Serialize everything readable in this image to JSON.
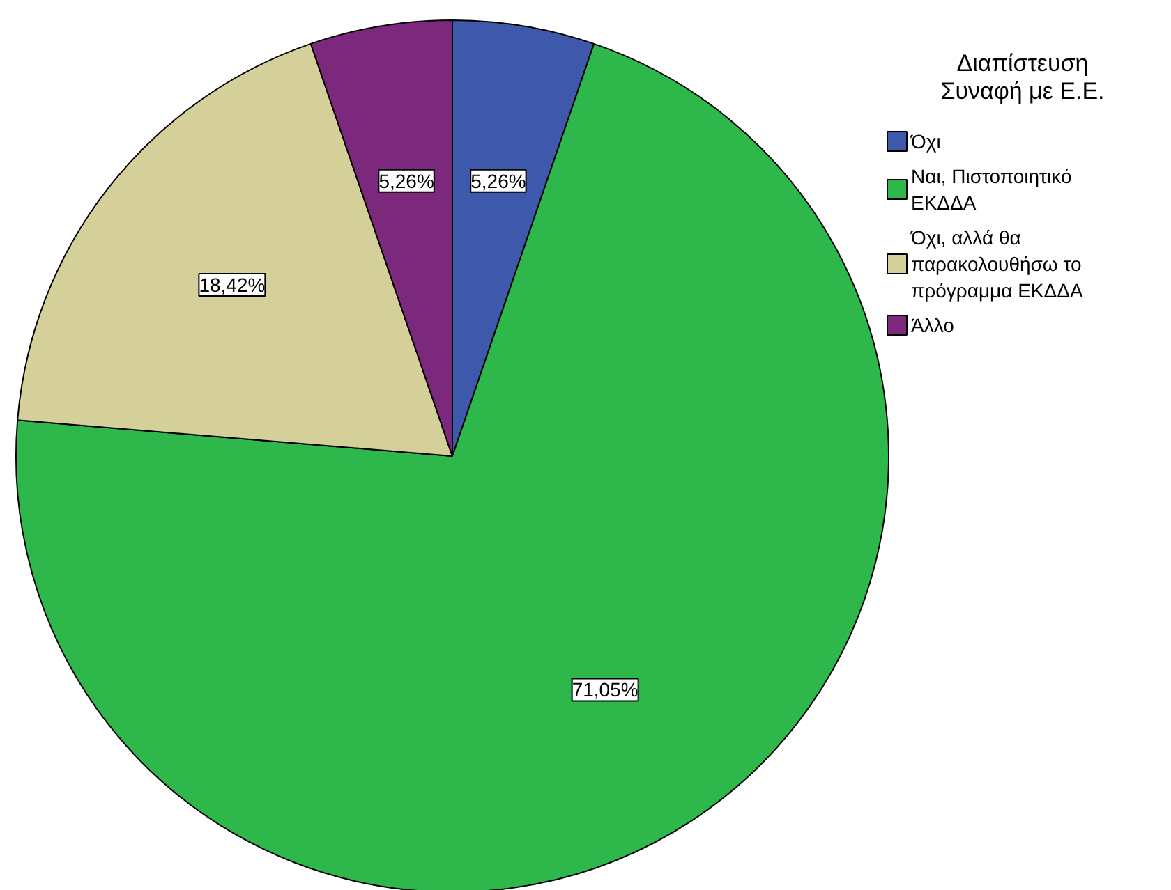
{
  "chart_data": {
    "type": "pie",
    "legend_title": "Διαπίστευση Συναφή με Ε.Ε.",
    "categories": [
      "Όχι",
      "Ναι, Πιστοποιητικό ΕΚΔΔΑ",
      "Όχι, αλλά θα παρακολουθήσω το πρόγραμμα ΕΚΔΔΑ",
      "Άλλο"
    ],
    "values": [
      5.26,
      71.05,
      18.42,
      5.26
    ],
    "colors": [
      "#3e58ac",
      "#2eb84c",
      "#d5cf99",
      "#7c287d"
    ],
    "value_labels": [
      "5,26%",
      "71,05%",
      "18,42%",
      "5,26%"
    ],
    "legend": "right"
  }
}
